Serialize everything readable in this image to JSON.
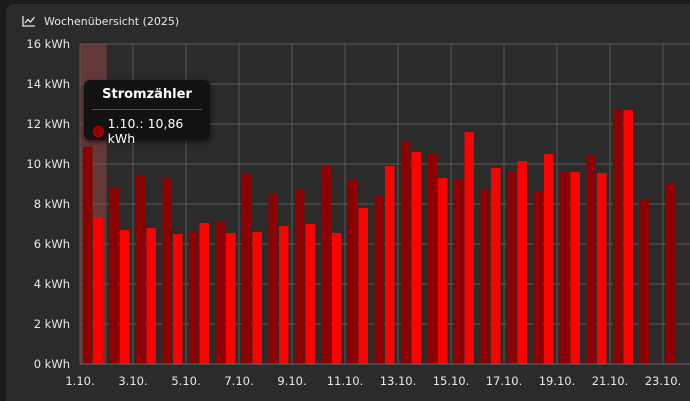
{
  "header": {
    "title": "Wochenübersicht (2025)",
    "icon": "line-chart-icon"
  },
  "tooltip": {
    "title": "Stromzähler",
    "text": "1.10.: 10,86 kWh",
    "dot_color": "#8b0000"
  },
  "colors": {
    "dark_series": "#8b0000",
    "bright_series": "#ff0000",
    "highlight": "#6b3a3a"
  },
  "chart_data": {
    "type": "bar",
    "ylim": [
      0,
      16
    ],
    "y_ticks": [
      "0 kWh",
      "2 kWh",
      "4 kWh",
      "6 kWh",
      "8 kWh",
      "10 kWh",
      "12 kWh",
      "14 kWh",
      "16 kWh"
    ],
    "x_tick_labels": [
      "1.10.",
      "3.10.",
      "5.10.",
      "7.10.",
      "9.10.",
      "11.10.",
      "13.10.",
      "15.10.",
      "17.10.",
      "19.10.",
      "21.10.",
      "23.10."
    ],
    "categories": [
      "1.10.",
      "2.10.",
      "3.10.",
      "4.10.",
      "5.10.",
      "6.10.",
      "7.10.",
      "8.10.",
      "9.10.",
      "10.10.",
      "11.10.",
      "12.10.",
      "13.10.",
      "14.10.",
      "15.10.",
      "16.10.",
      "17.10.",
      "18.10.",
      "19.10.",
      "20.10.",
      "21.10.",
      "22.10.",
      "23.10.",
      "24.10."
    ],
    "series": [
      {
        "name": "Stromzähler",
        "values": [
          10.86,
          8.8,
          9.4,
          9.35,
          6.6,
          7.15,
          9.55,
          8.55,
          8.7,
          9.9,
          9.25,
          8.45,
          11.1,
          10.5,
          9.25,
          8.7,
          9.6,
          8.6,
          9.6,
          10.4,
          12.7,
          8.2,
          9.05,
          null
        ]
      },
      {
        "values": [
          7.35,
          6.7,
          6.8,
          6.5,
          7.05,
          6.55,
          6.6,
          6.9,
          7.0,
          6.55,
          7.8,
          9.9,
          10.6,
          9.3,
          11.6,
          9.8,
          10.15,
          10.5,
          9.6,
          9.55,
          12.7,
          null,
          null,
          null
        ]
      }
    ],
    "highlighted_category": "1.10.",
    "grid": true
  }
}
